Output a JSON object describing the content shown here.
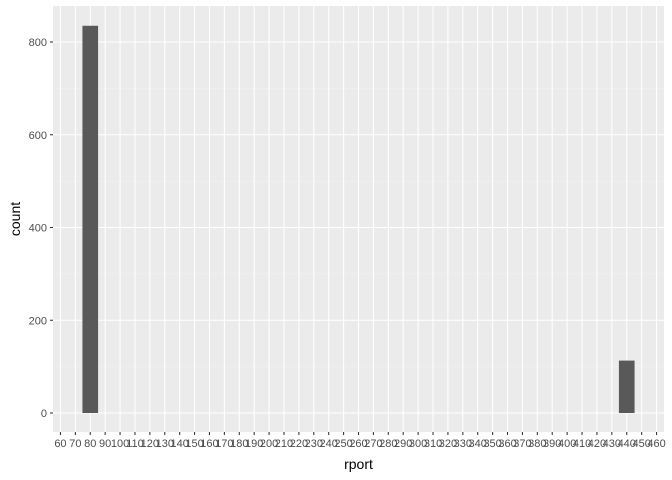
{
  "chart_data": {
    "type": "bar",
    "title": "",
    "xlabel": "rport",
    "ylabel": "count",
    "x_categories": [
      "60",
      "70",
      "80",
      "90",
      "100",
      "110",
      "120",
      "130",
      "140",
      "150",
      "160",
      "170",
      "180",
      "190",
      "200",
      "210",
      "220",
      "230",
      "240",
      "250",
      "260",
      "270",
      "280",
      "290",
      "300",
      "310",
      "320",
      "330",
      "340",
      "350",
      "360",
      "370",
      "380",
      "390",
      "400",
      "410",
      "420",
      "430",
      "440",
      "450",
      "460"
    ],
    "bars": [
      {
        "x": "80",
        "count": 835
      },
      {
        "x": "440",
        "count": 113
      }
    ],
    "ylim": [
      0,
      900
    ],
    "y_ticks": [
      0,
      200,
      400,
      600,
      800
    ],
    "colors": {
      "panel_background": "#EBEBEB",
      "grid_major": "#FFFFFF",
      "grid_minor": "#F2F2F2",
      "bar_fill": "#595959",
      "tick_text": "#4D4D4D",
      "tick_mark": "#333333"
    }
  }
}
